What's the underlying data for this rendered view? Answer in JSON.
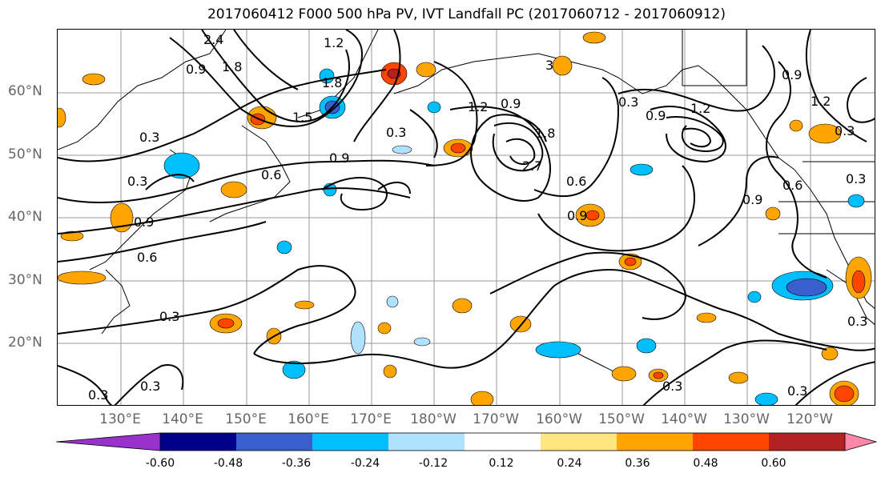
{
  "title": "2017060412 F000 500 hPa PV, IVT Landfall PC (2017060712 - 2017060912)",
  "latitude_labels": [
    "60°N",
    "50°N",
    "40°N",
    "30°N",
    "20°N"
  ],
  "longitude_labels": [
    "130°E",
    "140°E",
    "150°E",
    "160°E",
    "170°E",
    "180°W",
    "170°W",
    "160°W",
    "150°W",
    "140°W",
    "130°W",
    "120°W"
  ],
  "contour_labels": [
    "2.4",
    "1.8",
    "0.9",
    "1.2",
    "1.8",
    "1.5",
    "0.3",
    "0.3",
    "0.9",
    "0.6",
    "0.3",
    "0.9",
    "0.6",
    "1.2",
    "0.9",
    "0.3",
    "1.8",
    "2.7",
    "0.6",
    "0.9",
    "0.3",
    "0.9",
    "1.2",
    "0.9",
    "1.2",
    "0.3",
    "0.9",
    "0.6",
    "0.3",
    "0.3",
    "0.3",
    "0.3",
    "0.3",
    "0.3",
    "3"
  ],
  "colorbar": {
    "ticks": [
      "-0.60",
      "-0.48",
      "-0.36",
      "-0.24",
      "-0.12",
      "0.12",
      "0.24",
      "0.36",
      "0.48",
      "0.60"
    ],
    "colors": [
      "#9932cc",
      "#00008b",
      "#3a5fcd",
      "#00bfff",
      "#b0e2ff",
      "#ffffff",
      "#ffe680",
      "#ffa500",
      "#ff4500",
      "#b22222",
      "#ff88aa"
    ],
    "extend": "both"
  },
  "colors": {
    "coast": "#000000",
    "grid": "#999999",
    "axis_label": "#666666"
  }
}
